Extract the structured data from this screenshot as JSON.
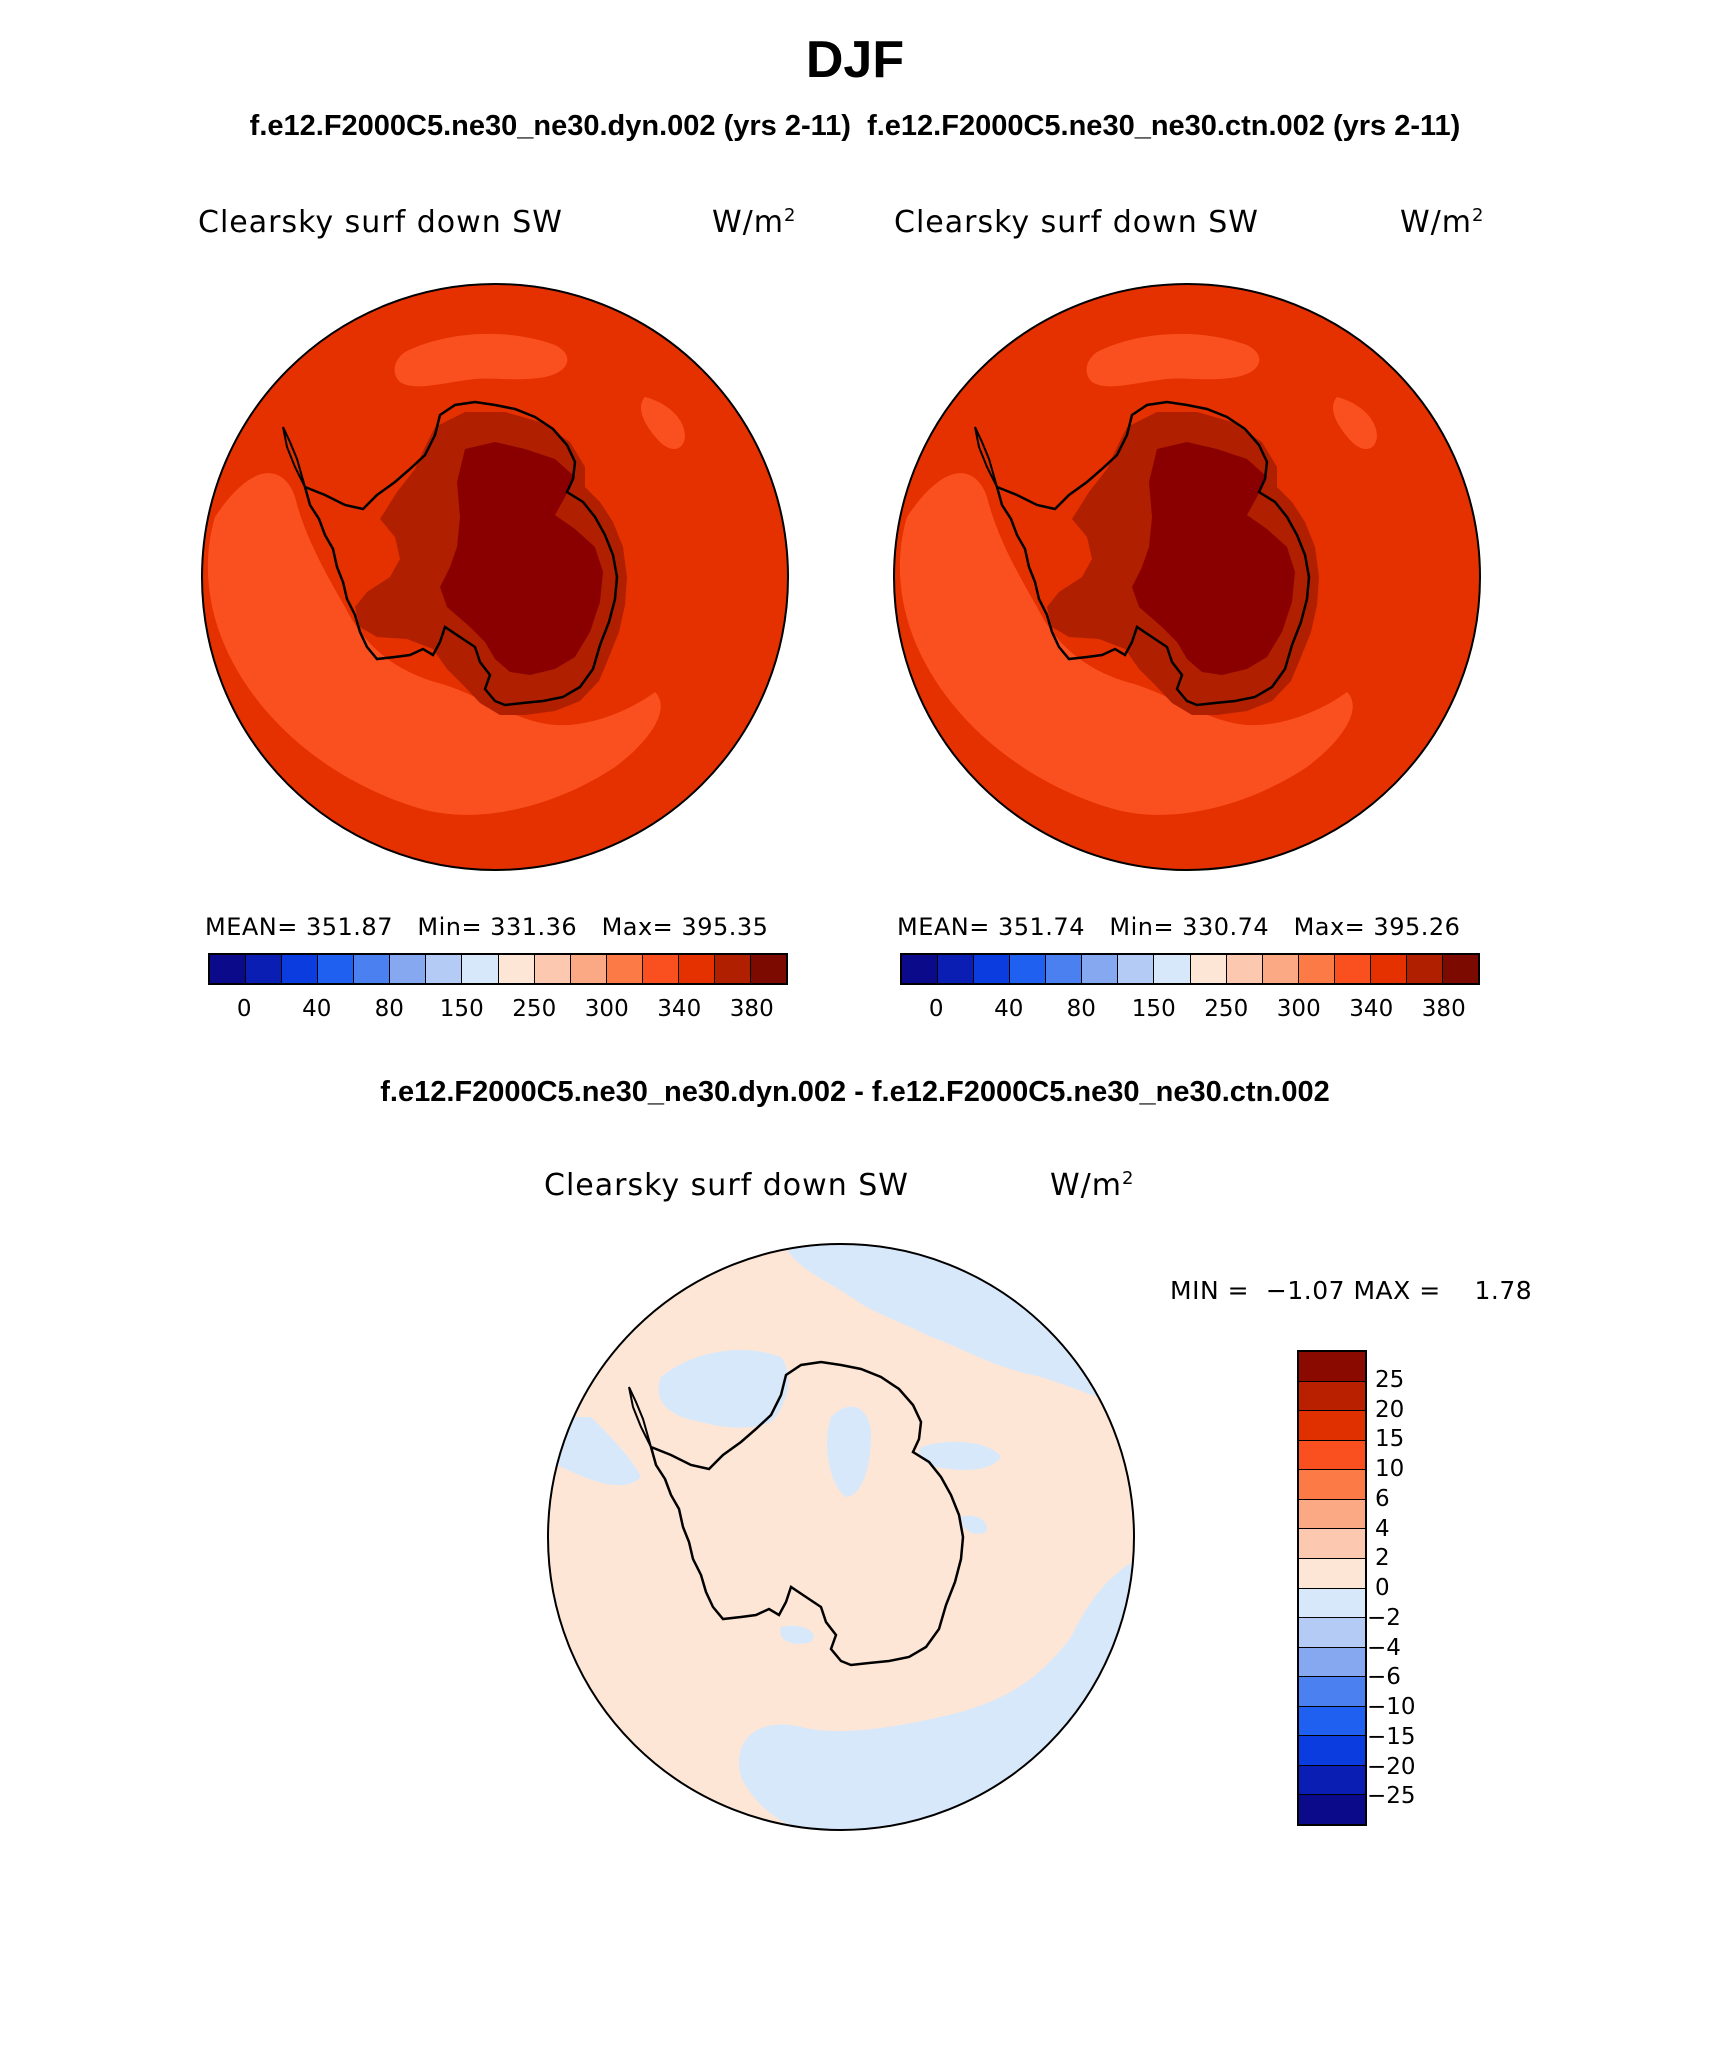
{
  "title": "DJF",
  "subtitle_top": "f.e12.F2000C5.ne30_ne30.dyn.002 (yrs 2-11)  f.e12.F2000C5.ne30_ne30.ctn.002 (yrs 2-11)",
  "subtitle_diff": "f.e12.F2000C5.ne30_ne30.dyn.002 - f.e12.F2000C5.ne30_ne30.ctn.002",
  "variable": "Clearsky surf down SW",
  "units": "W/m",
  "units_exp": "2",
  "panels": [
    {
      "mean": "MEAN= 351.87",
      "min": "Min= 331.36",
      "max": "Max= 395.35"
    },
    {
      "mean": "MEAN= 351.74",
      "min": "Min= 330.74",
      "max": "Max= 395.26"
    }
  ],
  "diff": {
    "minmax": "MIN =  −1.07 MAX =    1.78"
  },
  "abs_colorbar": {
    "colors": [
      "#0a0a8a",
      "#0a1eb4",
      "#0a3ce0",
      "#2060f0",
      "#4a80f0",
      "#85a8f0",
      "#b4ccf5",
      "#d8e8fb",
      "#fde6d6",
      "#fdc8b0",
      "#fba884",
      "#fb7a46",
      "#fa5020",
      "#e53000",
      "#b02000",
      "#7c0a00"
    ],
    "labels": [
      "0",
      "40",
      "80",
      "150",
      "250",
      "300",
      "340",
      "380"
    ],
    "label_boundaries": [
      1,
      3,
      5,
      7,
      9,
      11,
      13,
      15
    ]
  },
  "diff_colorbar": {
    "colors": [
      "#8a0a00",
      "#b82000",
      "#e03000",
      "#fa5020",
      "#fb7a46",
      "#fba884",
      "#fdc8b0",
      "#fde6d6",
      "#d8e8fb",
      "#b4ccf5",
      "#85a8f0",
      "#4a80f0",
      "#2060f0",
      "#0a3ce0",
      "#0a1eb4",
      "#0a0a8a"
    ],
    "labels": [
      "25",
      "20",
      "15",
      "10",
      "6",
      "4",
      "2",
      "0",
      "−2",
      "−4",
      "−6",
      "−10",
      "−15",
      "−20",
      "−25"
    ]
  },
  "map_colors": {
    "ocean": "#e53000",
    "ocean_light": "#fa5020",
    "ice_rim": "#b02000",
    "plateau": "#8a0000",
    "diff_positive": "#fde6d6",
    "diff_negative": "#d8e8fb"
  }
}
